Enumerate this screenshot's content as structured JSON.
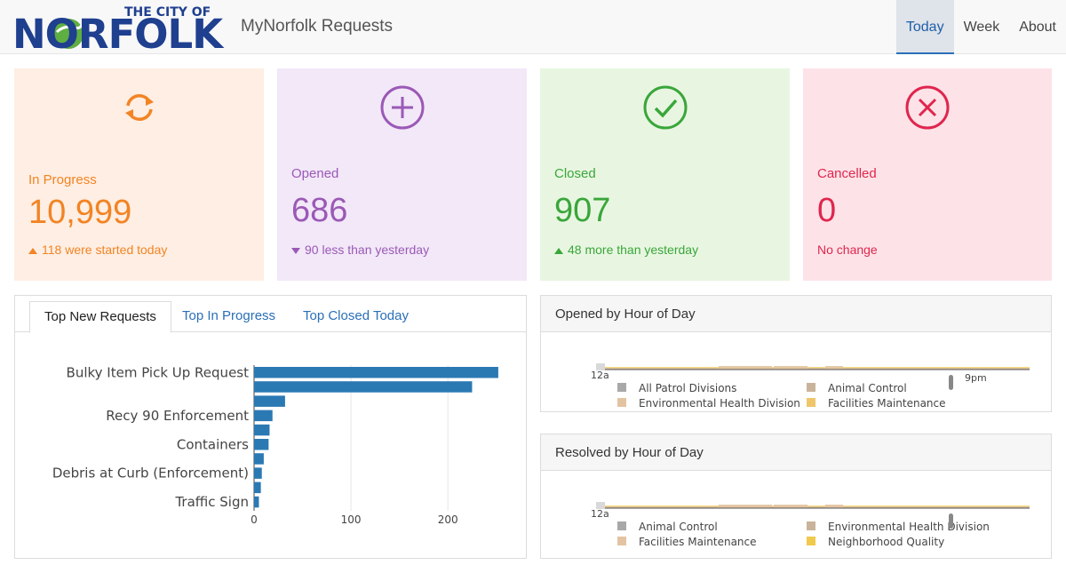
{
  "header": {
    "logo": {
      "city": "THE CITY OF",
      "name": "NORFOLK"
    },
    "app_title": "MyNorfolk Requests",
    "nav": [
      {
        "label": "Today",
        "active": true
      },
      {
        "label": "Week",
        "active": false
      },
      {
        "label": "About",
        "active": false
      }
    ]
  },
  "cards": {
    "in_progress": {
      "label": "In Progress",
      "value": "10,999",
      "change": "118 were started today",
      "direction": "up",
      "icon": "refresh-icon",
      "color": "#f28424"
    },
    "opened": {
      "label": "Opened",
      "value": "686",
      "change": "90 less than yesterday",
      "direction": "down",
      "icon": "plus-circle-icon",
      "color": "#9b59b6"
    },
    "closed": {
      "label": "Closed",
      "value": "907",
      "change": "48 more than yesterday",
      "direction": "up",
      "icon": "check-circle-icon",
      "color": "#3aa63a"
    },
    "cancelled": {
      "label": "Cancelled",
      "value": "0",
      "change": "No change",
      "direction": "none",
      "icon": "x-circle-icon",
      "color": "#e0264e"
    }
  },
  "top_panel": {
    "tabs": [
      {
        "label": "Top New Requests",
        "active": true
      },
      {
        "label": "Top In Progress",
        "active": false
      },
      {
        "label": "Top Closed Today",
        "active": false
      }
    ]
  },
  "chart_data": [
    {
      "type": "bar",
      "orientation": "horizontal",
      "categories": [
        "Bulky Item Pick Up Request",
        "",
        "",
        "Recy 90 Enforcement",
        "",
        "Containers",
        "",
        "Debris at Curb (Enforcement)",
        "",
        "Traffic Sign"
      ],
      "category_order": "top-to-bottom",
      "values": [
        252,
        225,
        32,
        19,
        16,
        15,
        10,
        8,
        7,
        5
      ],
      "xticks": [
        "0",
        "100",
        "200"
      ],
      "xlim": [
        0,
        275
      ],
      "grid": true,
      "bar_color": "#2b79b3"
    },
    {
      "type": "area",
      "title": "Opened by Hour of Day",
      "visible_tick_labels": [
        "12a",
        "9pm"
      ],
      "legend": [
        "All Patrol Divisions",
        "Animal Control",
        "Environmental Health Division",
        "Facilities Maintenance"
      ],
      "legend_colors": [
        "#a8a8a8",
        "#c9b49b",
        "#e3c4a2",
        "#eec66b"
      ]
    },
    {
      "type": "area",
      "title": "Resolved by Hour of Day",
      "visible_tick_labels": [
        "12a"
      ],
      "legend": [
        "Animal Control",
        "Environmental Health Division",
        "Facilities Maintenance",
        "Neighborhood Quality"
      ],
      "legend_colors": [
        "#a8a8a8",
        "#c9b49b",
        "#e3c4a2",
        "#f1c94c"
      ]
    }
  ]
}
